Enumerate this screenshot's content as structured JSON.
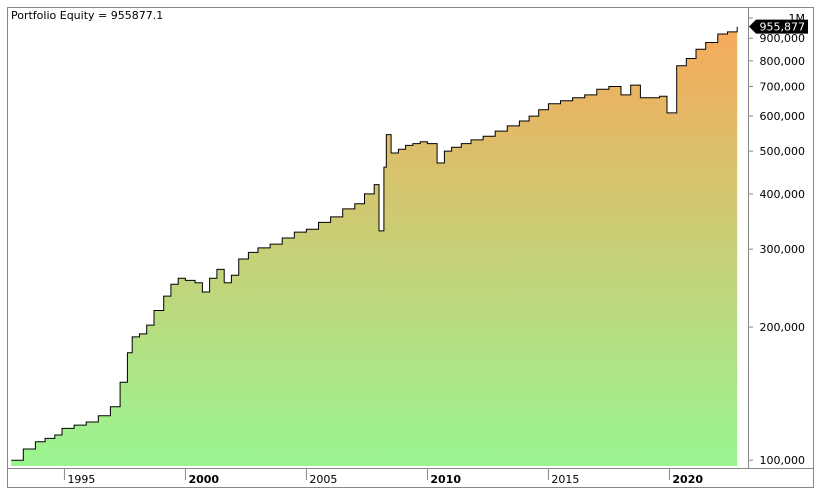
{
  "chart_data": {
    "type": "area",
    "title": "Portfolio Equity = 955877.1",
    "series": [
      {
        "name": "Portfolio Equity",
        "x": [
          1992.8,
          1993.3,
          1993.8,
          1994.2,
          1994.6,
          1994.9,
          1995.4,
          1995.9,
          1996.4,
          1996.9,
          1997.3,
          1997.6,
          1997.8,
          1998.1,
          1998.4,
          1998.7,
          1999.1,
          1999.4,
          1999.7,
          2000.0,
          2000.4,
          2000.7,
          2001.0,
          2001.3,
          2001.6,
          2001.9,
          2002.2,
          2002.6,
          2003.0,
          2003.5,
          2004.0,
          2004.5,
          2005.0,
          2005.5,
          2006.0,
          2006.5,
          2007.0,
          2007.4,
          2007.8,
          2008.0,
          2008.2,
          2008.3,
          2008.5,
          2008.8,
          2009.1,
          2009.4,
          2009.7,
          2010.0,
          2010.4,
          2010.7,
          2011.0,
          2011.4,
          2011.8,
          2012.3,
          2012.8,
          2013.3,
          2013.8,
          2014.2,
          2014.6,
          2015.0,
          2015.5,
          2016.0,
          2016.5,
          2017.0,
          2017.5,
          2018.0,
          2018.4,
          2018.8,
          2019.2,
          2019.6,
          2019.9,
          2020.3,
          2020.7,
          2021.1,
          2021.5,
          2022.0,
          2022.4,
          2022.8
        ],
        "values": [
          100000,
          106000,
          110000,
          112000,
          114000,
          118000,
          120000,
          122000,
          126000,
          132000,
          150000,
          175000,
          190000,
          193000,
          202000,
          218000,
          235000,
          250000,
          258000,
          255000,
          252000,
          240000,
          258000,
          270000,
          252000,
          262000,
          285000,
          295000,
          302000,
          308000,
          318000,
          328000,
          333000,
          345000,
          355000,
          370000,
          380000,
          400000,
          420000,
          330000,
          460000,
          545000,
          495000,
          505000,
          515000,
          520000,
          525000,
          520000,
          470000,
          500000,
          510000,
          520000,
          530000,
          540000,
          555000,
          570000,
          585000,
          600000,
          620000,
          640000,
          650000,
          660000,
          670000,
          690000,
          700000,
          670000,
          705000,
          660000,
          660000,
          665000,
          610000,
          780000,
          810000,
          850000,
          880000,
          920000,
          930000,
          955877
        ]
      }
    ],
    "x_range": [
      1992.75,
      2023.0
    ],
    "ylim": [
      97000,
      1000000
    ],
    "y_scale": "log",
    "y_ticks": [
      "1M",
      "900,000",
      "800,000",
      "700,000",
      "600,000",
      "500,000",
      "400,000",
      "300,000",
      "200,000",
      "100,000"
    ],
    "y_tick_values": [
      1000000,
      900000,
      800000,
      700000,
      600000,
      500000,
      400000,
      300000,
      200000,
      100000
    ],
    "x_ticks": [
      {
        "label": "1995",
        "value": 1995,
        "bold": false
      },
      {
        "label": "2000",
        "value": 2000,
        "bold": true
      },
      {
        "label": "2005",
        "value": 2005,
        "bold": false
      },
      {
        "label": "2010",
        "value": 2010,
        "bold": true
      },
      {
        "label": "2015",
        "value": 2015,
        "bold": false
      },
      {
        "label": "2020",
        "value": 2020,
        "bold": true
      }
    ],
    "last_value_label": "955,877",
    "grid": false,
    "colors": {
      "fill_top": "#f7a95b",
      "fill_bottom": "#99f591",
      "line": "#000000",
      "badge": "#000000",
      "badge_text": "#ffffff"
    }
  }
}
